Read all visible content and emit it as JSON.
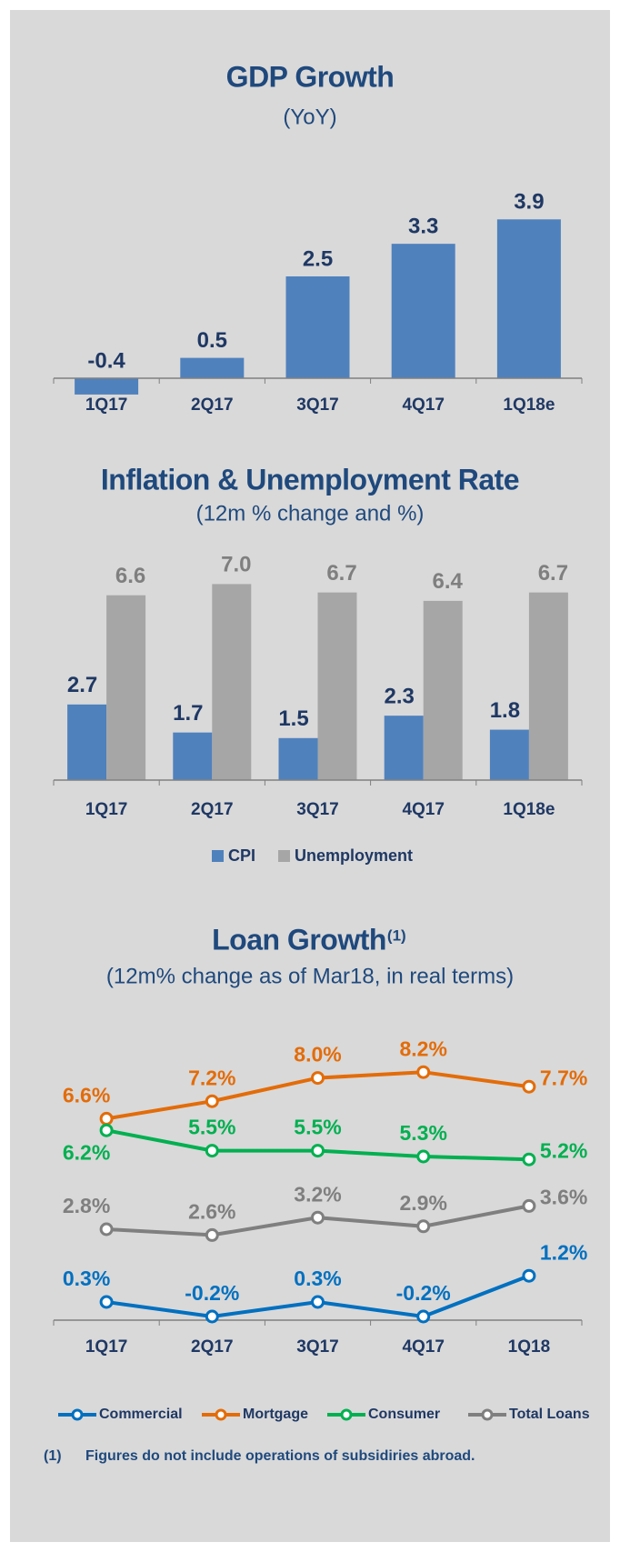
{
  "chart_data": [
    {
      "type": "bar",
      "title": "GDP Growth",
      "subtitle": "(YoY)",
      "categories": [
        "1Q17",
        "2Q17",
        "3Q17",
        "4Q17",
        "1Q18e"
      ],
      "values": [
        -0.4,
        0.5,
        2.5,
        3.3,
        3.9
      ],
      "color": "#4f81bd"
    },
    {
      "type": "grouped_bar",
      "title": "Inflation & Unemployment Rate",
      "subtitle": "(12m % change and %)",
      "categories": [
        "1Q17",
        "2Q17",
        "3Q17",
        "4Q17",
        "1Q18e"
      ],
      "series": [
        {
          "name": "CPI",
          "color": "#4f81bd",
          "values": [
            2.7,
            1.7,
            1.5,
            2.3,
            1.8
          ]
        },
        {
          "name": "Unemployment",
          "color": "#a6a6a6",
          "values": [
            6.6,
            7.0,
            6.7,
            6.4,
            6.7
          ],
          "value_labels": [
            "6.6",
            "7.0",
            "6.7",
            "6.4",
            "6.7"
          ]
        }
      ],
      "legend": "bottom"
    },
    {
      "type": "line",
      "title": "Loan Growth",
      "title_note": "(1)",
      "subtitle": "(12m% change as of Mar18, in real terms)",
      "categories": [
        "1Q17",
        "2Q17",
        "3Q17",
        "4Q17",
        "1Q18"
      ],
      "series": [
        {
          "name": "Commercial",
          "color": "#0070c0",
          "values": [
            0.3,
            -0.2,
            0.3,
            -0.2,
            1.2
          ],
          "value_labels": [
            "0.3%",
            "-0.2%",
            "0.3%",
            "-0.2%",
            "1.2%"
          ]
        },
        {
          "name": "Mortgage",
          "color": "#e36c09",
          "values": [
            6.6,
            7.2,
            8.0,
            8.2,
            7.7
          ],
          "value_labels": [
            "6.6%",
            "7.2%",
            "8.0%",
            "8.2%",
            "7.7%"
          ]
        },
        {
          "name": "Consumer",
          "color": "#00b050",
          "values": [
            6.2,
            5.5,
            5.5,
            5.3,
            5.2
          ],
          "value_labels": [
            "6.2%",
            "5.5%",
            "5.5%",
            "5.3%",
            "5.2%"
          ]
        },
        {
          "name": "Total Loans",
          "color": "#7f7f7f",
          "values": [
            2.8,
            2.6,
            3.2,
            2.9,
            3.6
          ],
          "value_labels": [
            "2.8%",
            "2.6%",
            "3.2%",
            "2.9%",
            "3.6%"
          ]
        }
      ],
      "legend": "bottom"
    }
  ],
  "footnote": {
    "marker": "(1)",
    "text": "Figures do not include operations of subsidiries abroad."
  }
}
